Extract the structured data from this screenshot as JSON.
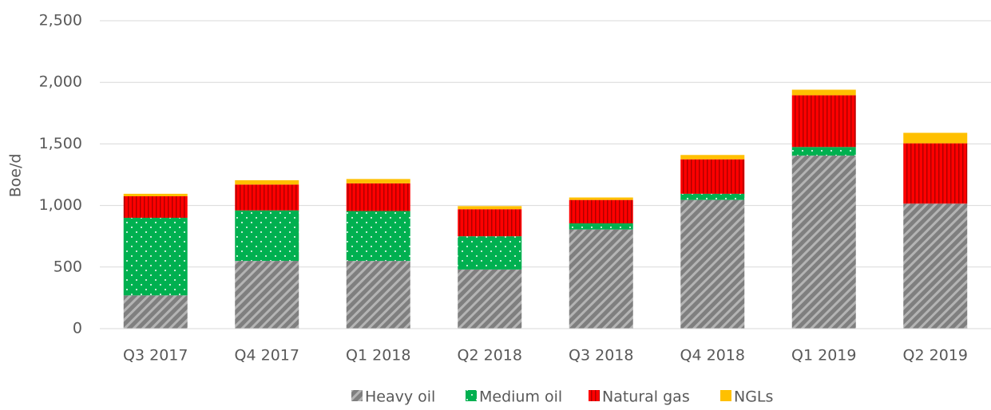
{
  "chart_data": {
    "type": "stacked_bar",
    "y_label": "Boe/d",
    "categories": [
      "Q3 2017",
      "Q4 2017",
      "Q1 2018",
      "Q2 2018",
      "Q3 2018",
      "Q4 2018",
      "Q1 2019",
      "Q2 2019"
    ],
    "series": [
      {
        "name": "Heavy oil",
        "color": "#7f7f7f",
        "values": [
          270,
          550,
          550,
          480,
          805,
          1045,
          1405,
          1015
        ]
      },
      {
        "name": "Medium oil",
        "color": "#00b050",
        "values": [
          630,
          410,
          405,
          270,
          50,
          50,
          70,
          0
        ]
      },
      {
        "name": "Natural gas",
        "color": "#ff0000",
        "values": [
          175,
          210,
          225,
          220,
          190,
          280,
          420,
          490
        ]
      },
      {
        "name": "NGLs",
        "color": "#ffc000",
        "values": [
          20,
          35,
          35,
          25,
          20,
          35,
          45,
          85
        ]
      }
    ],
    "ylim": [
      0,
      2500
    ],
    "yticks": [
      0,
      500,
      {
        "value": 1000,
        "label": "1,000"
      },
      {
        "value": 1500,
        "label": "1,500"
      },
      {
        "value": 2000,
        "label": "2,000"
      },
      {
        "value": 2500,
        "label": "2,500"
      }
    ],
    "grid": true,
    "legend": "bottom"
  }
}
